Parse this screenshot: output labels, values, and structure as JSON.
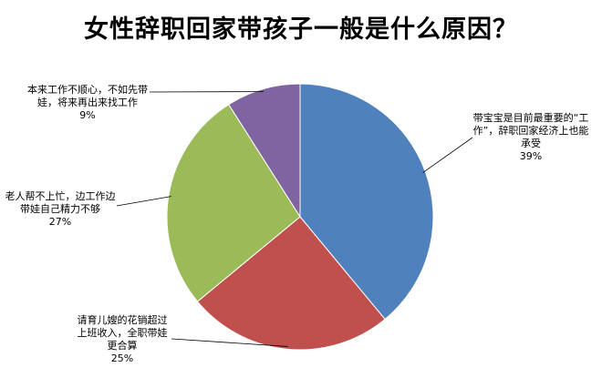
{
  "chart_data": {
    "type": "pie",
    "title": "女性辞职回家带孩子一般是什么原因？",
    "categories": [
      "带宝宝是目前最重要的“工作”，辞职回家经济上也能承受",
      "请育儿嫂的花销超过上班收入，全职带娃更合算",
      "老人帮不上忙，边工作边带娃自己精力不够",
      "本来工作不顺心，不如先带娃，将来再出来找工作"
    ],
    "values": [
      39,
      25,
      27,
      9
    ],
    "value_labels": [
      "39%",
      "25%",
      "27%",
      "9%"
    ],
    "colors": [
      "#4f81bd",
      "#c0504d",
      "#9bbb59",
      "#8064a2"
    ],
    "legend": "none",
    "data_labels": "outside-with-leader-lines"
  }
}
